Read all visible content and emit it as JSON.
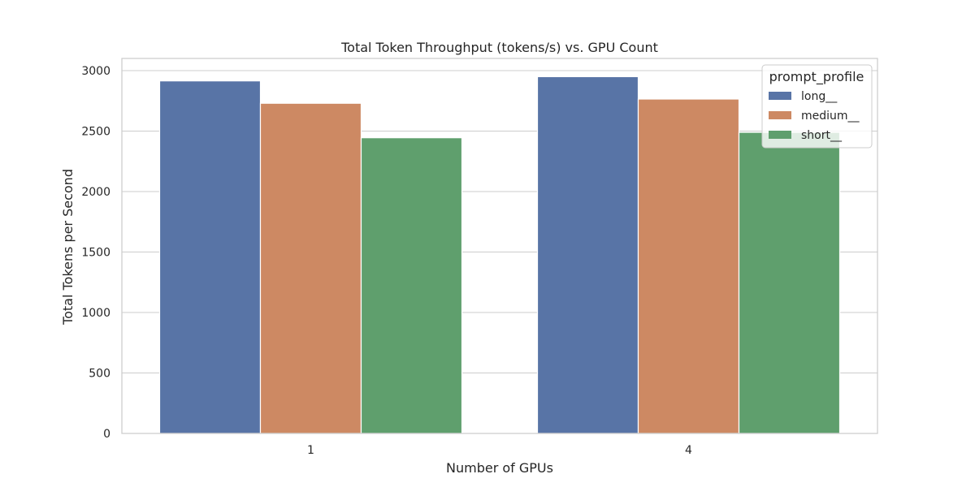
{
  "chart_data": {
    "type": "bar",
    "title": "Total Token Throughput (tokens/s) vs. GPU Count",
    "xlabel": "Number of GPUs",
    "ylabel": "Total Tokens per Second",
    "categories": [
      "1",
      "4"
    ],
    "ylim": [
      0,
      3100
    ],
    "yticks": [
      0,
      500,
      1000,
      1500,
      2000,
      2500,
      3000
    ],
    "grid": true,
    "legend": {
      "title": "prompt_profile",
      "placement": "top-right"
    },
    "series": [
      {
        "name": "long__",
        "color": "#5874a6",
        "values": [
          2915,
          2950
        ]
      },
      {
        "name": "medium__",
        "color": "#cd8963",
        "values": [
          2730,
          2765
        ]
      },
      {
        "name": "short__",
        "color": "#5f9f6d",
        "values": [
          2445,
          2490
        ]
      }
    ]
  }
}
